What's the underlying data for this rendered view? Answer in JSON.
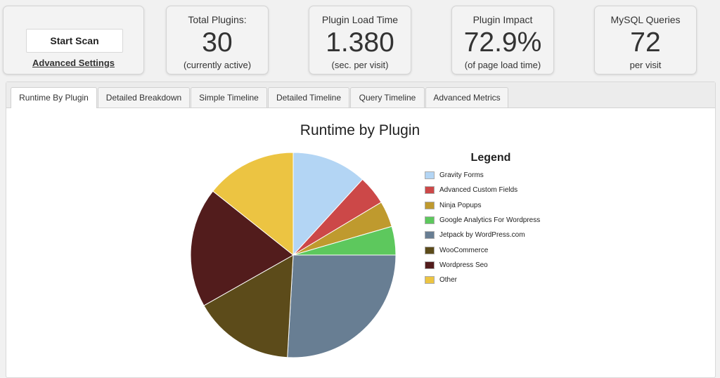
{
  "scan": {
    "start_label": "Start Scan",
    "advanced_label": "Advanced Settings"
  },
  "stats": [
    {
      "label": "Total Plugins:",
      "value": "30",
      "sub": "(currently active)"
    },
    {
      "label": "Plugin Load Time",
      "value": "1.380",
      "sub": "(sec. per visit)"
    },
    {
      "label": "Plugin Impact",
      "value": "72.9%",
      "sub": "(of page load time)"
    },
    {
      "label": "MySQL Queries",
      "value": "72",
      "sub": "per visit"
    }
  ],
  "tabs": [
    {
      "label": "Runtime By Plugin",
      "active": true
    },
    {
      "label": "Detailed Breakdown"
    },
    {
      "label": "Simple Timeline"
    },
    {
      "label": "Detailed Timeline"
    },
    {
      "label": "Query Timeline"
    },
    {
      "label": "Advanced Metrics"
    }
  ],
  "chart_data": {
    "type": "pie",
    "title": "Runtime by Plugin",
    "legend_title": "Legend",
    "legend_position": "right",
    "series": [
      {
        "name": "Gravity Forms",
        "value": 11.8,
        "color": "#b3d5f4"
      },
      {
        "name": "Advanced Custom Fields",
        "value": 4.6,
        "color": "#cc4848"
      },
      {
        "name": "Ninja Popups",
        "value": 4.1,
        "color": "#bf9a2e"
      },
      {
        "name": "Google Analytics For Wordpress",
        "value": 4.5,
        "color": "#5dc85d"
      },
      {
        "name": "Jetpack by WordPress.com",
        "value": 25.9,
        "color": "#687e93"
      },
      {
        "name": "WooCommerce",
        "value": 15.9,
        "color": "#5c4b1a"
      },
      {
        "name": "Wordpress Seo",
        "value": 18.9,
        "color": "#521c1c"
      },
      {
        "name": "Other",
        "value": 14.3,
        "color": "#ecc442"
      }
    ]
  }
}
